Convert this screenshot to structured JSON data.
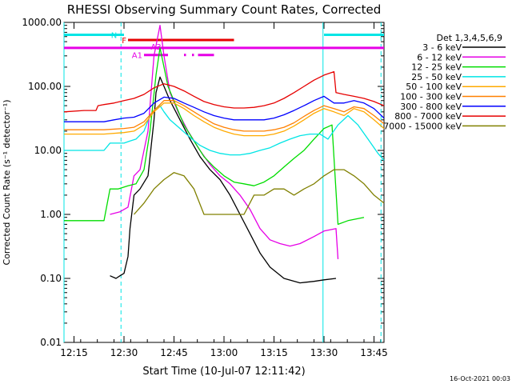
{
  "chart_data": {
    "type": "line",
    "title": "RHESSI Observing Summary Count Rates, Corrected",
    "xlabel": "Start Time (10-Jul-07 12:11:42)",
    "ylabel": "Corrected Count Rate (s⁻¹ detector⁻¹)",
    "xlim": [
      12.2,
      13.8
    ],
    "ylim": [
      0.01,
      1000
    ],
    "yscale": "log",
    "x_ticks": [
      {
        "x": 12.25,
        "label": "12:15"
      },
      {
        "x": 12.5,
        "label": "12:30"
      },
      {
        "x": 12.75,
        "label": "12:45"
      },
      {
        "x": 13.0,
        "label": "13:00"
      },
      {
        "x": 13.25,
        "label": "13:15"
      },
      {
        "x": 13.5,
        "label": "13:30"
      },
      {
        "x": 13.75,
        "label": "13:45"
      }
    ],
    "y_ticks": [
      {
        "y": 0.01,
        "label": "0.01"
      },
      {
        "y": 0.1,
        "label": "0.10"
      },
      {
        "y": 1,
        "label": "1.00"
      },
      {
        "y": 10,
        "label": "10.00"
      },
      {
        "y": 100,
        "label": "100.00"
      },
      {
        "y": 1000,
        "label": "1000.00"
      }
    ],
    "legend_header": "Det 1,3,4,5,6,9",
    "legend_position": "right",
    "grid": false,
    "series": [
      {
        "name": "3 - 6 keV",
        "color": "#000000",
        "x": [
          12.43,
          12.46,
          12.48,
          12.5,
          12.52,
          12.53,
          12.55,
          12.58,
          12.62,
          12.65,
          12.66,
          12.68,
          12.7,
          12.73,
          12.78,
          12.83,
          12.88,
          12.93,
          12.98,
          13.03,
          13.08,
          13.13,
          13.18,
          13.23,
          13.3,
          13.38,
          13.45,
          13.5,
          13.56
        ],
        "y": [
          0.11,
          0.1,
          0.11,
          0.12,
          0.22,
          0.6,
          2.0,
          2.5,
          4.0,
          30,
          80,
          140,
          100,
          60,
          30,
          15,
          8,
          5,
          3.5,
          2.0,
          1.0,
          0.5,
          0.25,
          0.15,
          0.1,
          0.085,
          0.09,
          0.095,
          0.1
        ]
      },
      {
        "name": "6 - 12 keV",
        "color": "#e600e6",
        "x": [
          12.43,
          12.48,
          12.52,
          12.55,
          12.58,
          12.62,
          12.65,
          12.68,
          12.7,
          12.73,
          12.77,
          12.82,
          12.88,
          12.93,
          12.98,
          13.03,
          13.08,
          13.13,
          13.18,
          13.23,
          13.28,
          13.33,
          13.38,
          13.45,
          13.5,
          13.56,
          13.57
        ],
        "y": [
          1.0,
          1.1,
          1.3,
          4,
          5,
          20,
          300,
          900,
          300,
          80,
          40,
          20,
          10,
          6,
          4,
          3,
          2,
          1.2,
          0.6,
          0.4,
          0.35,
          0.32,
          0.35,
          0.45,
          0.55,
          0.6,
          0.2
        ]
      },
      {
        "name": "12 - 25 keV",
        "color": "#00dd00",
        "x": [
          12.2,
          12.25,
          12.3,
          12.35,
          12.4,
          12.43,
          12.47,
          12.52,
          12.56,
          12.6,
          12.63,
          12.66,
          12.68,
          12.7,
          12.72,
          12.76,
          12.8,
          12.85,
          12.9,
          12.95,
          13.0,
          13.05,
          13.1,
          13.15,
          13.2,
          13.25,
          13.3,
          13.35,
          13.4,
          13.45,
          13.5,
          13.54,
          13.57,
          13.62,
          13.7
        ],
        "y": [
          0.8,
          0.8,
          0.8,
          0.8,
          0.8,
          2.5,
          2.5,
          2.8,
          3.0,
          5.0,
          20,
          150,
          400,
          200,
          100,
          50,
          25,
          14,
          8,
          5.5,
          4,
          3.2,
          3.0,
          2.8,
          3.2,
          4.0,
          5.5,
          7.5,
          10,
          15,
          22,
          25,
          0.7,
          0.8,
          0.9
        ]
      },
      {
        "name": "25 - 50 keV",
        "color": "#00e5e5",
        "x": [
          12.2,
          12.25,
          12.3,
          12.35,
          12.4,
          12.43,
          12.47,
          12.5,
          12.53,
          12.56,
          12.6,
          12.63,
          12.66,
          12.68,
          12.7,
          12.73,
          12.78,
          12.83,
          12.88,
          12.93,
          12.98,
          13.03,
          13.08,
          13.13,
          13.18,
          13.23,
          13.28,
          13.33,
          13.38,
          13.43,
          13.48,
          13.52,
          13.57,
          13.62,
          13.67,
          13.72,
          13.77,
          13.8
        ],
        "y": [
          10,
          10,
          10,
          10,
          10,
          13,
          13,
          13,
          14,
          15,
          20,
          35,
          45,
          50,
          40,
          30,
          22,
          16,
          12,
          10,
          9,
          8.5,
          8.5,
          9,
          10,
          11,
          13,
          15,
          17,
          18,
          18,
          15,
          25,
          35,
          25,
          15,
          9,
          7
        ]
      },
      {
        "name": "50 - 100 keV",
        "color": "#ffaa00",
        "x": [
          12.2,
          12.3,
          12.4,
          12.5,
          12.55,
          12.6,
          12.65,
          12.7,
          12.75,
          12.8,
          12.85,
          12.9,
          12.95,
          13.0,
          13.05,
          13.1,
          13.15,
          13.2,
          13.25,
          13.3,
          13.35,
          13.4,
          13.45,
          13.5,
          13.55,
          13.6,
          13.65,
          13.7,
          13.75,
          13.8
        ],
        "y": [
          18,
          18,
          18,
          19,
          20,
          25,
          40,
          55,
          55,
          45,
          35,
          28,
          23,
          20,
          18,
          17,
          17,
          17,
          18,
          20,
          24,
          30,
          38,
          45,
          40,
          35,
          45,
          40,
          30,
          22
        ]
      },
      {
        "name": "100 - 300 keV",
        "color": "#ff8000",
        "x": [
          12.2,
          12.3,
          12.4,
          12.5,
          12.55,
          12.6,
          12.65,
          12.7,
          12.75,
          12.8,
          12.85,
          12.9,
          12.95,
          13.0,
          13.05,
          13.1,
          13.15,
          13.2,
          13.25,
          13.3,
          13.35,
          13.4,
          13.45,
          13.5,
          13.55,
          13.6,
          13.65,
          13.7,
          13.75,
          13.8
        ],
        "y": [
          21,
          21,
          21,
          22,
          23,
          28,
          42,
          60,
          60,
          50,
          40,
          32,
          26,
          23,
          21,
          20,
          20,
          20,
          21,
          23,
          27,
          34,
          42,
          50,
          45,
          40,
          48,
          45,
          35,
          26
        ]
      },
      {
        "name": "300 - 800 keV",
        "color": "#0000ff",
        "x": [
          12.2,
          12.3,
          12.4,
          12.45,
          12.5,
          12.55,
          12.6,
          12.65,
          12.7,
          12.75,
          12.8,
          12.85,
          12.9,
          12.95,
          13.0,
          13.05,
          13.1,
          13.15,
          13.2,
          13.25,
          13.3,
          13.35,
          13.4,
          13.45,
          13.5,
          13.55,
          13.6,
          13.65,
          13.7,
          13.75,
          13.8
        ],
        "y": [
          28,
          28,
          28,
          30,
          32,
          33,
          38,
          55,
          68,
          65,
          55,
          47,
          40,
          35,
          32,
          30,
          30,
          30,
          30,
          32,
          36,
          42,
          50,
          60,
          70,
          55,
          55,
          60,
          55,
          45,
          32
        ]
      },
      {
        "name": "800 - 7000 keV",
        "color": "#e60000",
        "x": [
          12.2,
          12.3,
          12.36,
          12.37,
          12.4,
          12.45,
          12.5,
          12.55,
          12.6,
          12.65,
          12.7,
          12.75,
          12.8,
          12.85,
          12.9,
          12.95,
          13.0,
          13.05,
          13.1,
          13.15,
          13.2,
          13.25,
          13.3,
          13.35,
          13.4,
          13.45,
          13.5,
          13.55,
          13.56,
          13.6,
          13.65,
          13.7,
          13.75,
          13.8
        ],
        "y": [
          40,
          42,
          42,
          50,
          52,
          55,
          60,
          65,
          75,
          95,
          110,
          100,
          85,
          70,
          58,
          52,
          48,
          46,
          46,
          47,
          50,
          55,
          65,
          80,
          100,
          125,
          150,
          170,
          80,
          75,
          70,
          65,
          58,
          50
        ]
      },
      {
        "name": "7000 - 15000 keV",
        "color": "#808000",
        "x": [
          12.55,
          12.6,
          12.65,
          12.7,
          12.75,
          12.8,
          12.85,
          12.9,
          12.95,
          13.0,
          13.05,
          13.1,
          13.15,
          13.2,
          13.25,
          13.3,
          13.35,
          13.4,
          13.45,
          13.5,
          13.55,
          13.6,
          13.65,
          13.7,
          13.75,
          13.8
        ],
        "y": [
          1.0,
          1.5,
          2.5,
          3.5,
          4.5,
          4.0,
          2.5,
          1.0,
          1.0,
          1.0,
          1.0,
          1.0,
          2.0,
          2.0,
          2.5,
          2.5,
          2.0,
          2.5,
          3.0,
          4.0,
          5.0,
          5.0,
          4.0,
          3.0,
          2.0,
          1.5
        ]
      }
    ],
    "attenuator_bars": [
      {
        "label": "N",
        "color": "#00e5e5",
        "y": 640,
        "segments": [
          [
            12.2,
            12.5
          ],
          [
            13.5,
            13.8
          ]
        ]
      },
      {
        "label": "F",
        "color": "#e60000",
        "y": 530,
        "segments": [
          [
            12.52,
            13.05
          ]
        ]
      },
      {
        "label": "",
        "color": "#e600e6",
        "y": 400,
        "segments": [
          [
            12.2,
            13.8
          ]
        ]
      },
      {
        "label": "A1",
        "color": "#e600e6",
        "y": 310,
        "segments": [
          [
            12.6,
            12.72
          ],
          [
            12.8,
            12.81
          ],
          [
            12.84,
            12.85
          ],
          [
            12.87,
            12.95
          ]
        ]
      },
      {
        "label": "A3",
        "color": "#e600e6",
        "y": 420,
        "segments": []
      }
    ],
    "vertical_markers": [
      {
        "x": 12.2,
        "color": "#00e5e5",
        "style": "solid"
      },
      {
        "x": 12.485,
        "color": "#00e5e5",
        "style": "dashed"
      },
      {
        "x": 13.495,
        "color": "#00e5e5",
        "style": "solid"
      },
      {
        "x": 13.785,
        "color": "#00e5e5",
        "style": "dashed"
      }
    ]
  },
  "footer": {
    "timestamp": "16-Oct-2021 00:03"
  }
}
